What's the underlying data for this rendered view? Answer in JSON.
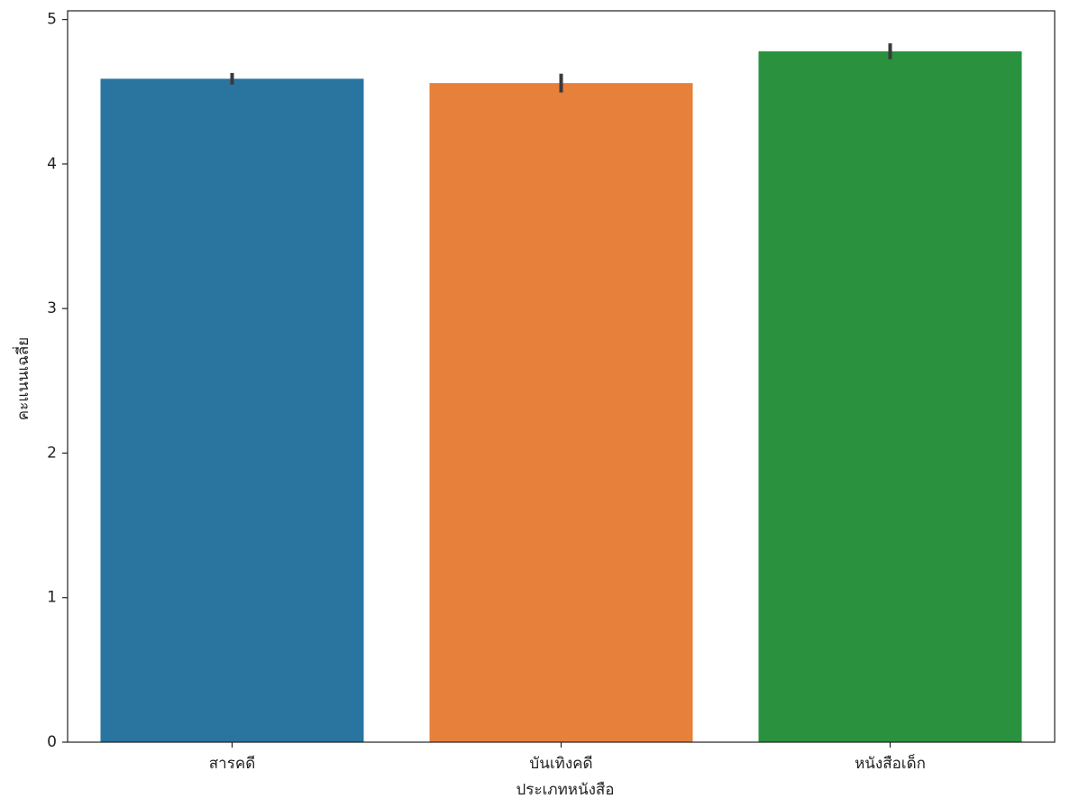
{
  "chart_data": {
    "type": "bar",
    "x_label": "ประเภทหนังสือ",
    "y_label": "คะแนนเฉลี่ย",
    "categories": [
      "สารคดี",
      "บันเทิงคดี",
      "หนังสือเด็ก"
    ],
    "values": [
      4.59,
      4.56,
      4.78
    ],
    "errors": [
      0.04,
      0.065,
      0.055
    ],
    "colors": [
      "#2a74a0",
      "#e6803a",
      "#2a923e"
    ],
    "ylim": [
      0,
      5.06
    ],
    "yticks": [
      0,
      1,
      2,
      3,
      4,
      5
    ],
    "grid": false
  }
}
